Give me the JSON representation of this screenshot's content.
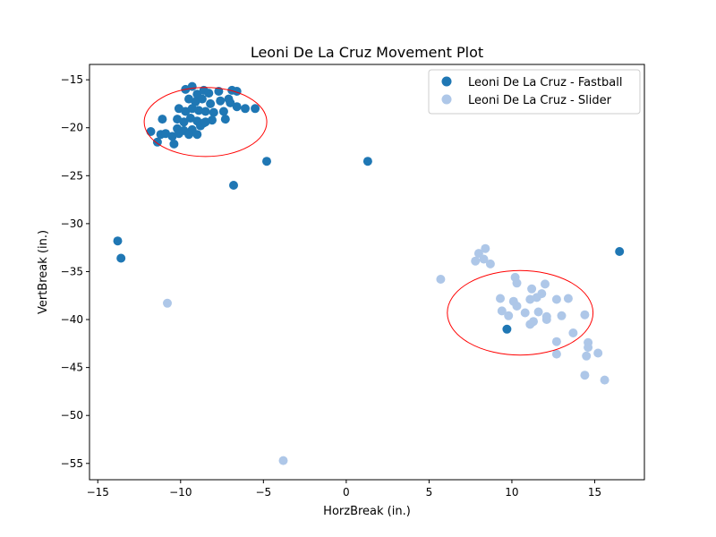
{
  "chart_data": {
    "type": "scatter",
    "title": "Leoni De La Cruz Movement Plot",
    "xlabel": "HorzBreak (in.)",
    "ylabel": "VertBreak (in.)",
    "xlim": [
      -15.5,
      18.0
    ],
    "ylim": [
      -56.7,
      -13.4
    ],
    "xticks": [
      -15,
      -10,
      -5,
      0,
      5,
      10,
      15
    ],
    "yticks": [
      -15,
      -20,
      -25,
      -30,
      -35,
      -40,
      -45,
      -50,
      -55
    ],
    "xtick_labels": [
      "−15",
      "−10",
      "−5",
      "0",
      "5",
      "10",
      "15"
    ],
    "ytick_labels": [
      "−15",
      "−20",
      "−25",
      "−30",
      "−35",
      "−40",
      "−45",
      "−50",
      "−55"
    ],
    "grid": false,
    "legend_position": "top-right",
    "series": [
      {
        "name": "Leoni De La Cruz - Fastball",
        "color": "#1f77b4",
        "points": [
          [
            -9.7,
            -16.0
          ],
          [
            -9.3,
            -15.7
          ],
          [
            -9.0,
            -16.5
          ],
          [
            -8.6,
            -16.1
          ],
          [
            -8.3,
            -16.4
          ],
          [
            -7.7,
            -16.2
          ],
          [
            -6.9,
            -16.1
          ],
          [
            -6.6,
            -16.2
          ],
          [
            -9.5,
            -17.0
          ],
          [
            -9.1,
            -17.3
          ],
          [
            -8.7,
            -17.0
          ],
          [
            -8.2,
            -17.5
          ],
          [
            -7.6,
            -17.2
          ],
          [
            -7.1,
            -17.0
          ],
          [
            -6.6,
            -17.8
          ],
          [
            -6.1,
            -18.0
          ],
          [
            -5.5,
            -18.0
          ],
          [
            -10.1,
            -18.0
          ],
          [
            -9.7,
            -18.3
          ],
          [
            -9.3,
            -18.0
          ],
          [
            -8.9,
            -18.2
          ],
          [
            -8.5,
            -18.3
          ],
          [
            -8.0,
            -18.4
          ],
          [
            -7.4,
            -18.3
          ],
          [
            -7.0,
            -17.4
          ],
          [
            -10.2,
            -19.1
          ],
          [
            -9.8,
            -19.4
          ],
          [
            -9.4,
            -19.0
          ],
          [
            -9.0,
            -19.3
          ],
          [
            -8.6,
            -19.5
          ],
          [
            -8.1,
            -19.2
          ],
          [
            -7.3,
            -19.1
          ],
          [
            -11.1,
            -19.1
          ],
          [
            -10.2,
            -20.1
          ],
          [
            -9.8,
            -20.3
          ],
          [
            -9.3,
            -20.2
          ],
          [
            -8.8,
            -19.8
          ],
          [
            -8.5,
            -19.4
          ],
          [
            -11.8,
            -20.4
          ],
          [
            -11.2,
            -20.7
          ],
          [
            -10.9,
            -20.6
          ],
          [
            -10.5,
            -20.9
          ],
          [
            -10.1,
            -20.6
          ],
          [
            -9.5,
            -20.7
          ],
          [
            -9.0,
            -20.7
          ],
          [
            -11.4,
            -21.5
          ],
          [
            -10.4,
            -21.7
          ],
          [
            -4.8,
            -23.5
          ],
          [
            1.3,
            -23.5
          ],
          [
            -6.8,
            -26.0
          ],
          [
            -13.8,
            -31.8
          ],
          [
            -13.6,
            -33.6
          ],
          [
            16.5,
            -32.9
          ],
          [
            9.7,
            -41.0
          ]
        ]
      },
      {
        "name": "Leoni De La Cruz - Slider",
        "color": "#aec7e8",
        "points": [
          [
            8.4,
            -32.6
          ],
          [
            8.0,
            -33.1
          ],
          [
            7.8,
            -33.9
          ],
          [
            8.3,
            -33.7
          ],
          [
            8.7,
            -34.2
          ],
          [
            5.7,
            -35.8
          ],
          [
            10.2,
            -35.6
          ],
          [
            10.3,
            -36.2
          ],
          [
            11.2,
            -36.8
          ],
          [
            12.0,
            -36.3
          ],
          [
            11.8,
            -37.3
          ],
          [
            11.5,
            -37.7
          ],
          [
            9.3,
            -37.8
          ],
          [
            10.1,
            -38.1
          ],
          [
            10.3,
            -38.6
          ],
          [
            11.1,
            -37.9
          ],
          [
            12.7,
            -37.9
          ],
          [
            13.4,
            -37.8
          ],
          [
            9.4,
            -39.1
          ],
          [
            9.8,
            -39.6
          ],
          [
            10.8,
            -39.3
          ],
          [
            11.6,
            -39.2
          ],
          [
            12.1,
            -39.7
          ],
          [
            12.1,
            -40.0
          ],
          [
            13.0,
            -39.6
          ],
          [
            14.4,
            -39.5
          ],
          [
            11.1,
            -40.5
          ],
          [
            11.3,
            -40.2
          ],
          [
            13.7,
            -41.4
          ],
          [
            12.7,
            -42.3
          ],
          [
            14.6,
            -42.4
          ],
          [
            14.6,
            -42.9
          ],
          [
            12.7,
            -43.6
          ],
          [
            15.2,
            -43.5
          ],
          [
            14.5,
            -43.8
          ],
          [
            14.4,
            -45.8
          ],
          [
            15.6,
            -46.3
          ],
          [
            -10.8,
            -38.3
          ],
          [
            -3.8,
            -54.7
          ]
        ]
      }
    ],
    "annotations": [
      {
        "shape": "ellipse",
        "color": "#ff0000",
        "center": [
          -8.5,
          -19.4
        ],
        "radius_x": 3.7,
        "radius_y": 3.6
      },
      {
        "shape": "ellipse",
        "color": "#ff0000",
        "center": [
          10.5,
          -39.3
        ],
        "radius_x": 4.4,
        "radius_y": 4.4
      }
    ]
  }
}
